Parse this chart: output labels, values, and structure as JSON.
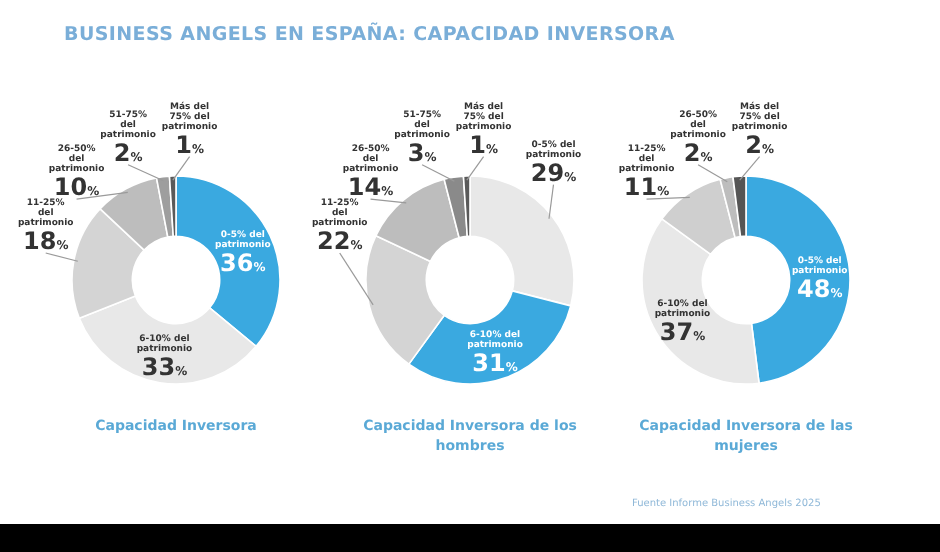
{
  "chart_data": [
    {
      "type": "donut",
      "title": "Capacidad Inversora",
      "annotations": [
        "BUSINESS ANGELS EN ESPAÑA: CAPACIDAD INVERSORA"
      ],
      "categories": [
        "0-5% del patrimonio",
        "6-10% del patrimonio",
        "11-25% del patrimonio",
        "26-50% del patrimonio",
        "51-75% del patrimonio",
        "Más del 75% del patrimonio"
      ],
      "values": [
        36,
        33,
        18,
        10,
        2,
        1
      ],
      "value_labels": [
        "36%",
        "33%",
        "18%",
        "10%",
        "2%",
        "1%"
      ],
      "colors": [
        "#3aa9e0",
        "#e8e8e8",
        "#d4d4d4",
        "#bdbdbd",
        "#9e9e9e",
        "#5a5a5a"
      ],
      "legend": false
    },
    {
      "type": "donut",
      "title": "Capacidad Inversora de los hombres",
      "categories": [
        "0-5% del patrimonio",
        "6-10% del patrimonio",
        "11-25% del patrimonio",
        "26-50% del patrimonio",
        "51-75% del patrimonio",
        "Más del 75% del patrimonio"
      ],
      "values": [
        29,
        31,
        22,
        14,
        3,
        1
      ],
      "value_labels": [
        "29%",
        "31%",
        "22%",
        "14%",
        "3%",
        "1%"
      ],
      "colors": [
        "#e8e8e8",
        "#3aa9e0",
        "#d4d4d4",
        "#bdbdbd",
        "#8a8a8a",
        "#5a5a5a"
      ],
      "legend": false
    },
    {
      "type": "donut",
      "title": "Capacidad Inversora de las mujeres",
      "annotations": [
        "Fuente Informe Business Angels 2025"
      ],
      "categories": [
        "0-5% del patrimonio",
        "6-10% del patrimonio",
        "11-25% del patrimonio",
        "26-50% del patrimonio",
        "Más del 75% del patrimonio"
      ],
      "values": [
        48,
        37,
        11,
        2,
        2
      ],
      "value_labels": [
        "48%",
        "37%",
        "11%",
        "2%",
        "2%"
      ],
      "colors": [
        "#3aa9e0",
        "#e8e8e8",
        "#cfcfcf",
        "#bdbdbd",
        "#555555"
      ],
      "legend": false
    }
  ]
}
